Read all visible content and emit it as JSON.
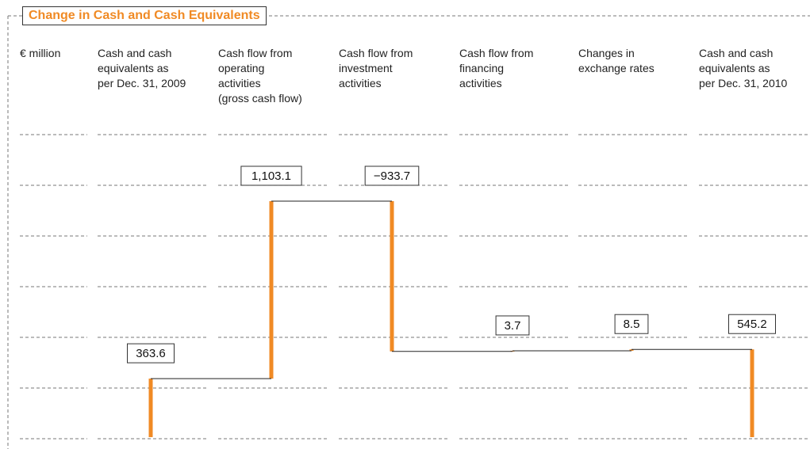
{
  "chart_data": {
    "type": "waterfall",
    "title": "Change in Cash and Cash Equivalents",
    "y_label": "€ million",
    "categories": [
      "Cash and cash\nequivalents as\nper Dec. 31, 2009",
      "Cash flow from\noperating\nactivities\n(gross cash flow)",
      "Cash flow from\ninvestment\nactivities",
      "Cash flow from\nfinancing\nactivities",
      "Changes in\nexchange rates",
      "Cash and cash\nequivalents as\nper Dec. 31, 2010"
    ],
    "measure": [
      "absolute",
      "relative",
      "relative",
      "relative",
      "relative",
      "total"
    ],
    "values": [
      363.6,
      1103.1,
      -933.7,
      3.7,
      8.5,
      545.2
    ],
    "value_labels": [
      "363.6",
      "1,103.1",
      "−933.7",
      "3.7",
      "8.5",
      "545.2"
    ],
    "color": "#f08a24",
    "ylim": [
      0,
      1880
    ]
  }
}
